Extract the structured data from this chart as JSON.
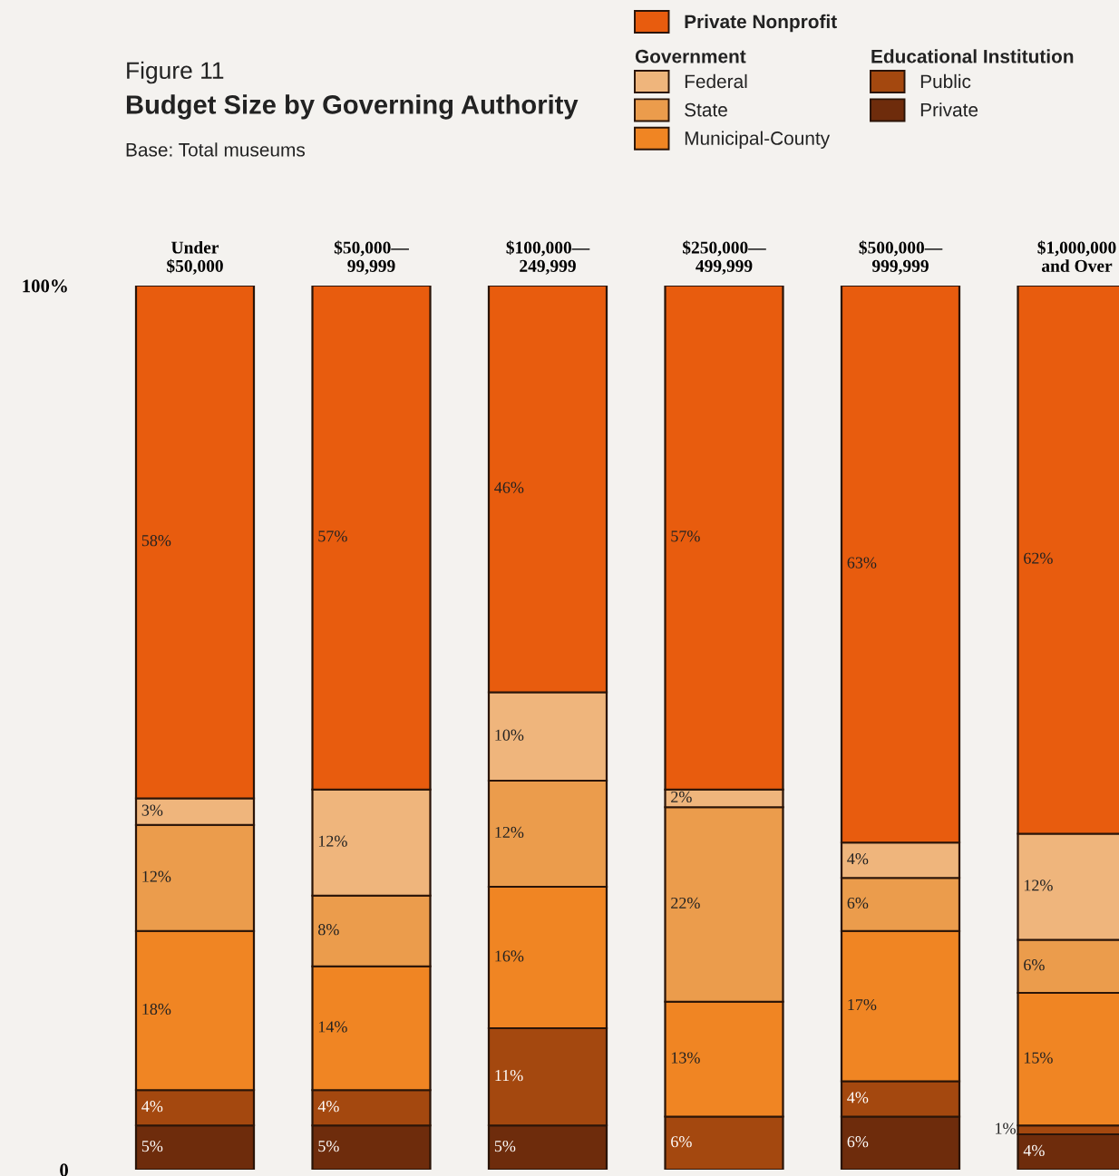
{
  "chart_data": {
    "type": "bar",
    "stacked": true,
    "title": "Budget Size by Governing Authority",
    "subtitle": "Base: Total museums",
    "annotations": [
      "Figure 11",
      "Government",
      "Educational Institution"
    ],
    "categories": [
      "Under\n$50,000",
      "$50,000—\n99,999",
      "$100,000—\n249,999",
      "$250,000—\n499,999",
      "$500,000—\n999,999",
      "$1,000,000\nand Over"
    ],
    "ylim": [
      0,
      100
    ],
    "yticks": [
      0,
      {
        "value": 100,
        "label": "100%"
      }
    ],
    "grid": false,
    "legend": "top right",
    "series": [
      {
        "name": "Private",
        "color": "#6e2c0c",
        "values": [
          5,
          5,
          5,
          0,
          6,
          4
        ],
        "value_labels": [
          "5%",
          "5%",
          "5%",
          null,
          "6%",
          "4%"
        ]
      },
      {
        "name": "Public",
        "color": "#a4480f",
        "values": [
          4,
          4,
          11,
          6,
          4,
          1
        ],
        "value_labels": [
          "4%",
          "4%",
          "11%",
          "6%",
          "4%",
          "1%"
        ]
      },
      {
        "name": "Municipal-County",
        "color": "#f08523",
        "values": [
          18,
          14,
          16,
          13,
          17,
          15
        ],
        "value_labels": [
          "18%",
          "14%",
          "16%",
          "13%",
          "17%",
          "15%"
        ]
      },
      {
        "name": "State",
        "color": "#eb9c4c",
        "values": [
          12,
          8,
          12,
          22,
          6,
          6
        ],
        "value_labels": [
          "12%",
          "8%",
          "12%",
          "22%",
          "6%",
          "6%"
        ]
      },
      {
        "name": "Federal",
        "color": "#efb57c",
        "values": [
          3,
          12,
          10,
          2,
          4,
          12
        ],
        "value_labels": [
          "3%",
          "12%",
          "10%",
          "2%",
          "4%",
          "12%"
        ]
      },
      {
        "name": "Private Nonprofit",
        "color": "#e85c0e",
        "values": [
          58,
          57,
          46,
          57,
          63,
          62
        ],
        "value_labels": [
          "58%",
          "57%",
          "46%",
          "57%",
          "63%",
          "62%"
        ]
      }
    ]
  }
}
